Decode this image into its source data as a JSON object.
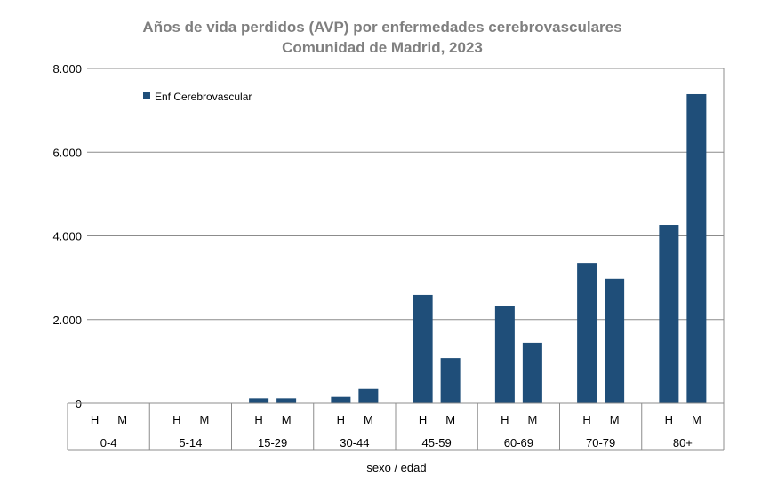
{
  "chart_data": {
    "type": "bar",
    "title": "Años de vida perdidos (AVP) por enfermedades cerebrovasculares",
    "subtitle": "Comunidad de Madrid, 2023",
    "xlabel": "sexo / edad",
    "ylabel": "",
    "ylim": [
      0,
      8000
    ],
    "yticks": [
      "0",
      "2.000",
      "4.000",
      "6.000",
      "8.000"
    ],
    "ytick_values": [
      0,
      2000,
      4000,
      6000,
      8000
    ],
    "grid": true,
    "legend_position": "top-left",
    "groups": [
      "0-4",
      "5-14",
      "15-29",
      "30-44",
      "45-59",
      "60-69",
      "70-79",
      "80+"
    ],
    "subcategories": [
      "H",
      "M"
    ],
    "series": [
      {
        "name": "Enf Cerebrovascular",
        "color": "#1f4e79",
        "values": [
          [
            0,
            0
          ],
          [
            0,
            0
          ],
          [
            120,
            120
          ],
          [
            155,
            345
          ],
          [
            2590,
            1080
          ],
          [
            2320,
            1445
          ],
          [
            3350,
            2975
          ],
          [
            4265,
            7385
          ]
        ]
      }
    ]
  }
}
